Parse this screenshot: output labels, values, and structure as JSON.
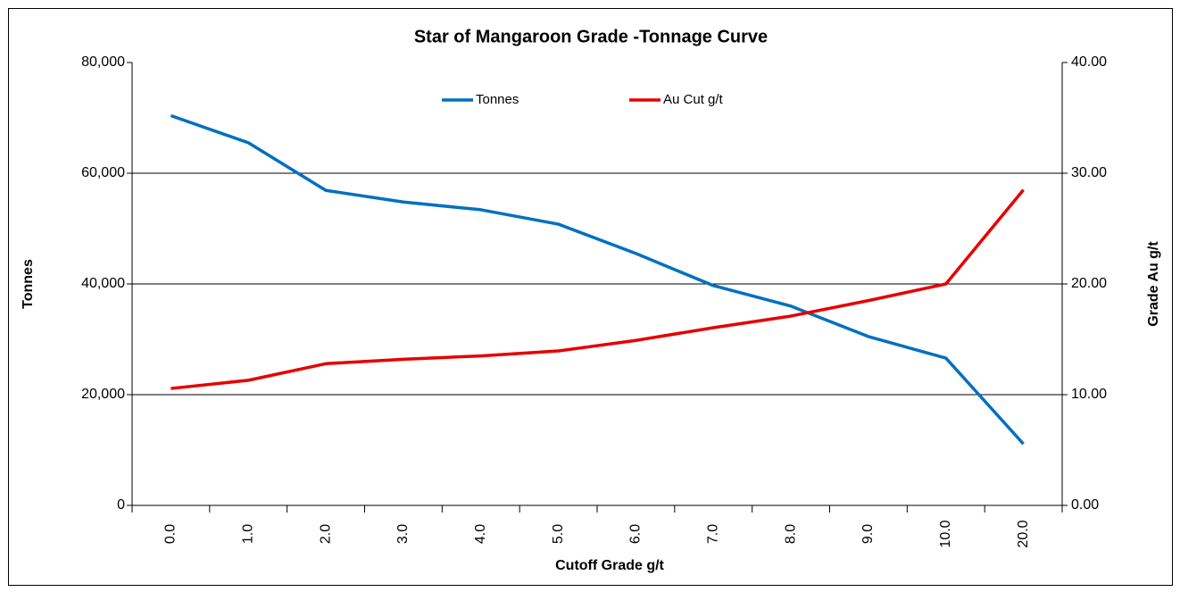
{
  "chart_data": {
    "type": "line",
    "title": "Star of Mangaroon Grade -Tonnage Curve",
    "x_label": "Cutoff Grade g/t",
    "y_label": "Tonnes",
    "y2_label": "Grade Au g/t",
    "categories": [
      "0.0",
      "1.0",
      "2.0",
      "3.0",
      "4.0",
      "5.0",
      "6.0",
      "7.0",
      "8.0",
      "9.0",
      "10.0",
      "20.0"
    ],
    "series": [
      {
        "name": "Tonnes",
        "color": "#0070c0",
        "values": [
          70400,
          65500,
          56900,
          54800,
          53400,
          50800,
          45500,
          39700,
          36000,
          30500,
          26600,
          11100
        ]
      },
      {
        "name": "Au Cut g/t",
        "color": "#e60000",
        "axis": "y2",
        "values": [
          10.56,
          11.3,
          12.8,
          13.2,
          13.5,
          13.95,
          14.9,
          16.05,
          17.1,
          18.5,
          20.0,
          28.5
        ]
      }
    ],
    "ylim": [
      0,
      80000
    ],
    "yticks": [
      0,
      {
        "value": 20000,
        "label": "20,000"
      },
      {
        "value": 40000,
        "label": "40,000"
      },
      {
        "value": 60000,
        "label": "60,000"
      },
      {
        "value": 80000,
        "label": "80,000"
      }
    ],
    "y2lim": [
      0,
      40
    ],
    "y2ticks": [
      {
        "value": 0,
        "label": "0.00"
      },
      {
        "value": 10,
        "label": "10.00"
      },
      {
        "value": 20,
        "label": "20.00"
      },
      {
        "value": 30,
        "label": "30.00"
      },
      {
        "value": 40,
        "label": "40.00"
      }
    ],
    "grid": true,
    "legend": "top"
  }
}
